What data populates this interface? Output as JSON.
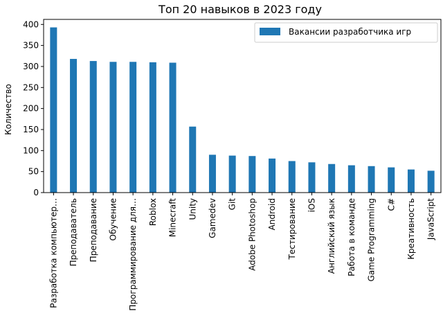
{
  "chart_data": {
    "type": "bar",
    "title": "Топ 20 навыков в 2023 году",
    "xlabel": "",
    "ylabel": "Количество",
    "ylim": [
      0,
      412
    ],
    "yticks": [
      0,
      50,
      100,
      150,
      200,
      250,
      300,
      350,
      400
    ],
    "grid": false,
    "legend_position": "top-right",
    "categories": [
      "Разработка компьютер…",
      "Преподаватель",
      "Преподавание",
      "Обучение",
      "Программирование для…",
      "Roblox",
      "Minecraft",
      "Unity",
      "Gamedev",
      "Git",
      "Adobe Photoshop",
      "Android",
      "Тестирование",
      "iOS",
      "Английский язык",
      "Работа в команде",
      "Game Programming",
      "C#",
      "Креативность",
      "JavaScript"
    ],
    "series": [
      {
        "name": "Вакансии разработчика игр",
        "color": "#1f77b4",
        "values": [
          393,
          318,
          313,
          311,
          311,
          310,
          309,
          157,
          90,
          88,
          87,
          81,
          75,
          72,
          68,
          65,
          63,
          60,
          55,
          52
        ]
      }
    ]
  }
}
